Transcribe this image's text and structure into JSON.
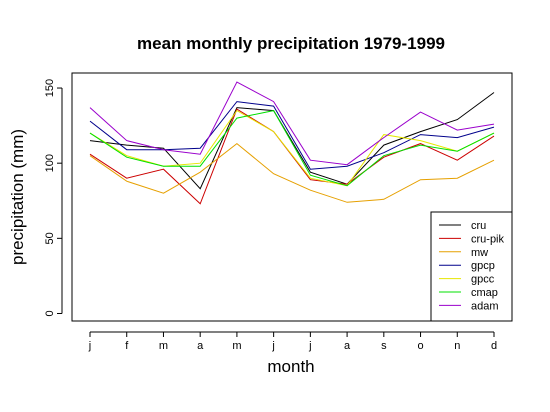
{
  "chart_data": {
    "type": "line",
    "title": "mean monthly precipitation 1979-1999",
    "xlabel": "month",
    "ylabel": "precipitation (mm)",
    "categories": [
      "j",
      "f",
      "m",
      "a",
      "m",
      "j",
      "j",
      "a",
      "s",
      "o",
      "n",
      "d"
    ],
    "ylim": [
      -5,
      160
    ],
    "yticks": [
      0,
      50,
      100,
      150
    ],
    "grid": false,
    "legend_position": "bottom-right",
    "series": [
      {
        "name": "cru",
        "color": "#000000",
        "values": [
          115,
          112,
          110,
          83,
          137,
          135,
          94,
          86,
          112,
          121,
          129,
          147
        ]
      },
      {
        "name": "cru-pik",
        "color": "#cc0000",
        "values": [
          106,
          90,
          96,
          73,
          136,
          121,
          89,
          86,
          104,
          113,
          102,
          118
        ]
      },
      {
        "name": "mw",
        "color": "#e6a000",
        "values": [
          105,
          88,
          80,
          94,
          113,
          93,
          82,
          74,
          76,
          89,
          90,
          102
        ]
      },
      {
        "name": "gpcp",
        "color": "#00008b",
        "values": [
          128,
          109,
          109,
          110,
          141,
          138,
          96,
          98,
          107,
          119,
          117,
          124
        ]
      },
      {
        "name": "gpcc",
        "color": "#e6e600",
        "values": [
          120,
          105,
          98,
          100,
          135,
          121,
          90,
          85,
          119,
          115,
          108,
          120
        ]
      },
      {
        "name": "cmap",
        "color": "#00e000",
        "values": [
          120,
          104,
          98,
          98,
          130,
          135,
          92,
          85,
          105,
          112,
          108,
          120
        ]
      },
      {
        "name": "adam",
        "color": "#9a00cc",
        "values": [
          137,
          115,
          109,
          106,
          154,
          141,
          102,
          99,
          117,
          134,
          122,
          126
        ]
      }
    ]
  }
}
